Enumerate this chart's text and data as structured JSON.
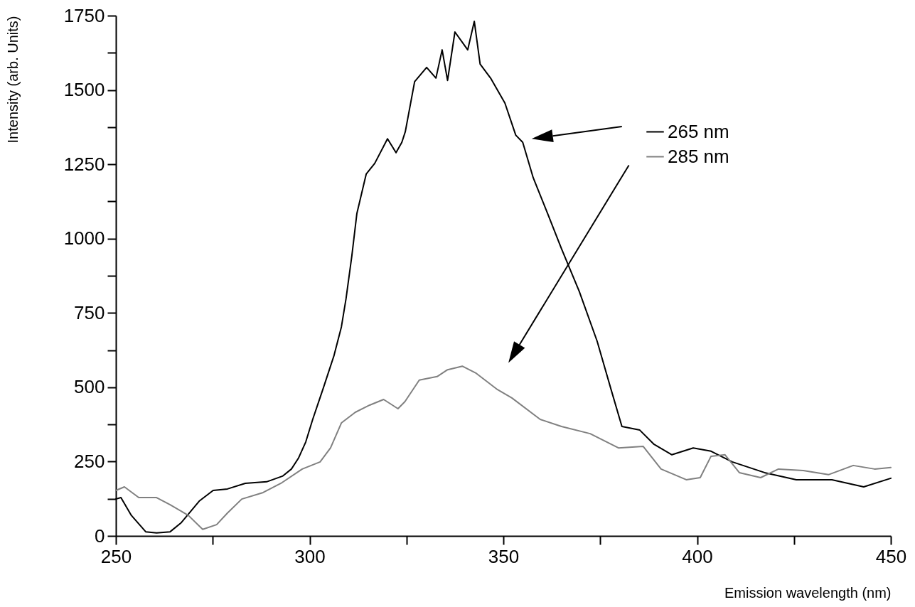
{
  "chart_data": {
    "type": "line",
    "xlabel": "Emission wavelength (nm)",
    "ylabel": "Intensity (arb. Units)",
    "xlim": [
      250,
      450
    ],
    "ylim": [
      0,
      1750
    ],
    "xticks": [
      250,
      {
        "value": 275,
        "label": null
      },
      300,
      {
        "value": 325,
        "label": null
      },
      350,
      {
        "value": 375,
        "label": null
      },
      400,
      {
        "value": 425,
        "label": null
      },
      450
    ],
    "yticks": [
      0,
      {
        "value": 125,
        "label": null
      },
      250,
      {
        "value": 375,
        "label": null
      },
      500,
      {
        "value": 625,
        "label": null
      },
      750,
      {
        "value": 875,
        "label": null
      },
      1000,
      {
        "value": 1125,
        "label": null
      },
      1250,
      {
        "value": 1375,
        "label": null
      },
      1500,
      {
        "value": 1625,
        "label": null
      },
      1750
    ],
    "grid": false,
    "legend": "top right",
    "marker": "none",
    "line_style": "solid",
    "series": [
      {
        "name": "265 nm",
        "color": "#000000",
        "x": [
          250,
          251.3,
          254,
          257.7,
          260.5,
          264,
          266.9,
          271.5,
          275.1,
          278.8,
          283.4,
          288.9,
          293,
          295.3,
          297.1,
          299,
          300.8,
          303.6,
          306.3,
          308.2,
          309.4,
          310.9,
          312.2,
          314.6,
          316.8,
          320.1,
          322.3,
          323.8,
          324.7,
          327.1,
          330.2,
          332.6,
          334.2,
          335.6,
          337.5,
          340.8,
          342.5,
          344,
          346.7,
          350.4,
          353.2,
          355,
          357.7,
          361.4,
          365,
          369.6,
          374.2,
          377.9,
          380.6,
          385.2,
          388.9,
          393.5,
          399,
          403.6,
          409.1,
          417.4,
          425.6,
          434.8,
          443,
          450
        ],
        "values": [
          124,
          129,
          69,
          14,
          10,
          14,
          45,
          117,
          153,
          158,
          177,
          182,
          201,
          225,
          261,
          316,
          392,
          500,
          607,
          703,
          798,
          942,
          1085,
          1217,
          1253,
          1336,
          1289,
          1324,
          1360,
          1528,
          1576,
          1540,
          1635,
          1532,
          1695,
          1635,
          1731,
          1587,
          1540,
          1456,
          1348,
          1324,
          1205,
          1085,
          966,
          822,
          655,
          488,
          368,
          356,
          308,
          273,
          296,
          285,
          249,
          213,
          189,
          189,
          165,
          194
        ]
      },
      {
        "name": "285 nm",
        "color": "#808080",
        "x": [
          250,
          252.2,
          255.9,
          260.5,
          264,
          268.7,
          272.4,
          276,
          278.8,
          282.5,
          288,
          292.6,
          298.1,
          302.7,
          305.4,
          308.2,
          311.8,
          315.5,
          319.1,
          322.8,
          324.6,
          328.3,
          332.9,
          335.6,
          339.4,
          343,
          348.5,
          352.2,
          359.5,
          365,
          372.4,
          379.7,
          386.1,
          390.7,
          397.2,
          400.8,
          403.6,
          407.2,
          410.9,
          416.4,
          421,
          427.4,
          433.9,
          440.3,
          445.8,
          450
        ],
        "values": [
          153,
          165,
          129,
          129,
          105,
          69,
          22,
          38,
          77,
          124,
          146,
          177,
          225,
          249,
          296,
          380,
          416,
          440,
          459,
          428,
          452,
          524,
          536,
          559,
          571,
          547,
          492,
          464,
          392,
          368,
          344,
          296,
          301,
          225,
          189,
          196,
          268,
          273,
          213,
          196,
          225,
          220,
          206,
          237,
          225,
          230
        ]
      }
    ]
  }
}
